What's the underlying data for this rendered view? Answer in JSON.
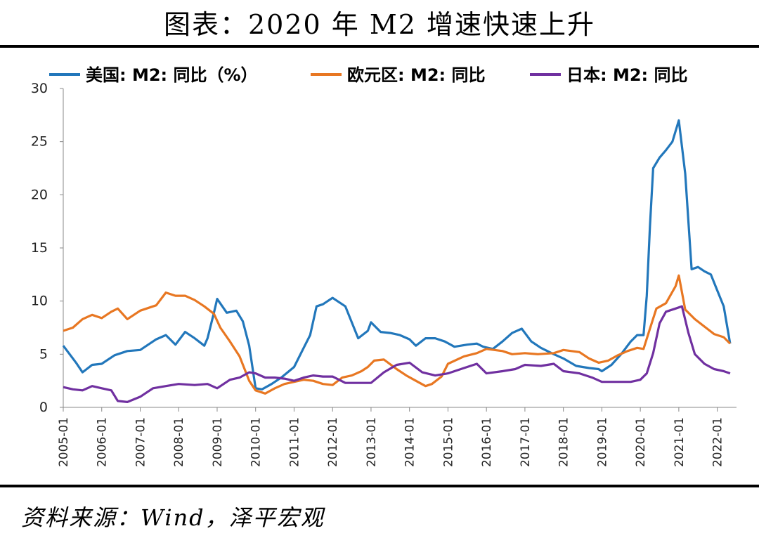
{
  "title": "图表：2020 年 M2 增速快速上升",
  "source": "资料来源：Wind，泽平宏观",
  "colors": {
    "us": "#2277BB",
    "euro": "#E87722",
    "japan": "#7030A0"
  },
  "chart_data": {
    "type": "line",
    "ylim": [
      0,
      30
    ],
    "yticks": [
      0,
      5,
      10,
      15,
      20,
      25,
      30
    ],
    "xlim": [
      "2005-01",
      "2022-07"
    ],
    "xticks": [
      "2005-01",
      "2006-01",
      "2007-01",
      "2008-01",
      "2009-01",
      "2010-01",
      "2011-01",
      "2012-01",
      "2013-01",
      "2014-01",
      "2015-01",
      "2016-01",
      "2017-01",
      "2018-01",
      "2019-01",
      "2020-01",
      "2021-01",
      "2022-01"
    ],
    "legend_position": "top",
    "grid": false,
    "series": [
      {
        "name": "美国: M2: 同比（%）",
        "color": "#2277BB",
        "points": [
          [
            "2005-01",
            5.8
          ],
          [
            "2005-05",
            4.2
          ],
          [
            "2005-07",
            3.3
          ],
          [
            "2005-10",
            4.0
          ],
          [
            "2006-01",
            4.1
          ],
          [
            "2006-05",
            4.9
          ],
          [
            "2006-09",
            5.3
          ],
          [
            "2007-01",
            5.4
          ],
          [
            "2007-06",
            6.4
          ],
          [
            "2007-09",
            6.8
          ],
          [
            "2007-12",
            5.9
          ],
          [
            "2008-03",
            7.1
          ],
          [
            "2008-06",
            6.5
          ],
          [
            "2008-09",
            5.8
          ],
          [
            "2008-10",
            6.5
          ],
          [
            "2008-12",
            8.9
          ],
          [
            "2009-01",
            10.2
          ],
          [
            "2009-04",
            8.9
          ],
          [
            "2009-07",
            9.1
          ],
          [
            "2009-09",
            8.1
          ],
          [
            "2009-11",
            5.8
          ],
          [
            "2010-01",
            1.8
          ],
          [
            "2010-03",
            1.7
          ],
          [
            "2010-06",
            2.2
          ],
          [
            "2010-09",
            2.8
          ],
          [
            "2011-01",
            3.8
          ],
          [
            "2011-04",
            5.6
          ],
          [
            "2011-06",
            6.8
          ],
          [
            "2011-08",
            9.5
          ],
          [
            "2011-10",
            9.7
          ],
          [
            "2012-01",
            10.3
          ],
          [
            "2012-05",
            9.5
          ],
          [
            "2012-09",
            6.5
          ],
          [
            "2012-12",
            7.2
          ],
          [
            "2013-01",
            8.0
          ],
          [
            "2013-04",
            7.1
          ],
          [
            "2013-07",
            7.0
          ],
          [
            "2013-10",
            6.8
          ],
          [
            "2014-01",
            6.4
          ],
          [
            "2014-03",
            5.8
          ],
          [
            "2014-06",
            6.5
          ],
          [
            "2014-09",
            6.5
          ],
          [
            "2014-12",
            6.2
          ],
          [
            "2015-03",
            5.7
          ],
          [
            "2015-07",
            5.9
          ],
          [
            "2015-10",
            6.0
          ],
          [
            "2015-12",
            5.7
          ],
          [
            "2016-03",
            5.5
          ],
          [
            "2016-06",
            6.2
          ],
          [
            "2016-09",
            7.0
          ],
          [
            "2016-12",
            7.4
          ],
          [
            "2017-03",
            6.2
          ],
          [
            "2017-06",
            5.6
          ],
          [
            "2017-10",
            5.0
          ],
          [
            "2018-01",
            4.6
          ],
          [
            "2018-05",
            3.9
          ],
          [
            "2018-09",
            3.7
          ],
          [
            "2018-12",
            3.6
          ],
          [
            "2019-01",
            3.4
          ],
          [
            "2019-04",
            4.0
          ],
          [
            "2019-07",
            5.0
          ],
          [
            "2019-10",
            6.2
          ],
          [
            "2019-12",
            6.8
          ],
          [
            "2020-02",
            6.8
          ],
          [
            "2020-03",
            10.5
          ],
          [
            "2020-04",
            17.0
          ],
          [
            "2020-05",
            22.5
          ],
          [
            "2020-07",
            23.5
          ],
          [
            "2020-09",
            24.2
          ],
          [
            "2020-11",
            25.0
          ],
          [
            "2021-01",
            27.0
          ],
          [
            "2021-03",
            22.0
          ],
          [
            "2021-05",
            13.0
          ],
          [
            "2021-07",
            13.2
          ],
          [
            "2021-09",
            12.8
          ],
          [
            "2021-11",
            12.5
          ],
          [
            "2022-01",
            11.0
          ],
          [
            "2022-03",
            9.5
          ],
          [
            "2022-05",
            6.0
          ]
        ]
      },
      {
        "name": "欧元区: M2: 同比",
        "color": "#E87722",
        "points": [
          [
            "2005-01",
            7.2
          ],
          [
            "2005-04",
            7.5
          ],
          [
            "2005-07",
            8.3
          ],
          [
            "2005-10",
            8.7
          ],
          [
            "2006-01",
            8.4
          ],
          [
            "2006-04",
            9.0
          ],
          [
            "2006-06",
            9.3
          ],
          [
            "2006-09",
            8.3
          ],
          [
            "2007-01",
            9.1
          ],
          [
            "2007-06",
            9.6
          ],
          [
            "2007-09",
            10.8
          ],
          [
            "2007-12",
            10.5
          ],
          [
            "2008-03",
            10.5
          ],
          [
            "2008-06",
            10.1
          ],
          [
            "2008-09",
            9.5
          ],
          [
            "2008-12",
            8.8
          ],
          [
            "2009-02",
            7.5
          ],
          [
            "2009-05",
            6.2
          ],
          [
            "2009-08",
            4.8
          ],
          [
            "2009-11",
            2.5
          ],
          [
            "2010-01",
            1.6
          ],
          [
            "2010-04",
            1.3
          ],
          [
            "2010-07",
            1.8
          ],
          [
            "2010-10",
            2.2
          ],
          [
            "2011-01",
            2.4
          ],
          [
            "2011-04",
            2.6
          ],
          [
            "2011-07",
            2.5
          ],
          [
            "2011-10",
            2.2
          ],
          [
            "2012-01",
            2.1
          ],
          [
            "2012-04",
            2.8
          ],
          [
            "2012-07",
            3.0
          ],
          [
            "2012-10",
            3.4
          ],
          [
            "2012-12",
            3.8
          ],
          [
            "2013-02",
            4.4
          ],
          [
            "2013-05",
            4.5
          ],
          [
            "2013-09",
            3.6
          ],
          [
            "2013-12",
            3.0
          ],
          [
            "2014-03",
            2.5
          ],
          [
            "2014-06",
            2.0
          ],
          [
            "2014-08",
            2.2
          ],
          [
            "2014-11",
            2.9
          ],
          [
            "2015-01",
            4.1
          ],
          [
            "2015-06",
            4.8
          ],
          [
            "2015-10",
            5.1
          ],
          [
            "2016-01",
            5.5
          ],
          [
            "2016-06",
            5.3
          ],
          [
            "2016-09",
            5.0
          ],
          [
            "2017-01",
            5.1
          ],
          [
            "2017-05",
            5.0
          ],
          [
            "2017-10",
            5.1
          ],
          [
            "2018-01",
            5.4
          ],
          [
            "2018-06",
            5.2
          ],
          [
            "2018-09",
            4.6
          ],
          [
            "2018-12",
            4.2
          ],
          [
            "2019-03",
            4.4
          ],
          [
            "2019-06",
            4.9
          ],
          [
            "2019-09",
            5.3
          ],
          [
            "2019-12",
            5.6
          ],
          [
            "2020-02",
            5.5
          ],
          [
            "2020-04",
            7.4
          ],
          [
            "2020-06",
            9.3
          ],
          [
            "2020-09",
            9.8
          ],
          [
            "2020-12",
            11.4
          ],
          [
            "2021-01",
            12.4
          ],
          [
            "2021-03",
            9.2
          ],
          [
            "2021-06",
            8.3
          ],
          [
            "2021-09",
            7.6
          ],
          [
            "2021-12",
            6.9
          ],
          [
            "2022-03",
            6.6
          ],
          [
            "2022-05",
            6.0
          ]
        ]
      },
      {
        "name": "日本: M2: 同比",
        "color": "#7030A0",
        "points": [
          [
            "2005-01",
            1.9
          ],
          [
            "2005-04",
            1.7
          ],
          [
            "2005-07",
            1.6
          ],
          [
            "2005-10",
            2.0
          ],
          [
            "2006-01",
            1.8
          ],
          [
            "2006-04",
            1.6
          ],
          [
            "2006-06",
            0.6
          ],
          [
            "2006-09",
            0.5
          ],
          [
            "2007-01",
            1.0
          ],
          [
            "2007-05",
            1.8
          ],
          [
            "2007-09",
            2.0
          ],
          [
            "2008-01",
            2.2
          ],
          [
            "2008-06",
            2.1
          ],
          [
            "2008-10",
            2.2
          ],
          [
            "2009-01",
            1.8
          ],
          [
            "2009-05",
            2.6
          ],
          [
            "2009-08",
            2.8
          ],
          [
            "2009-11",
            3.3
          ],
          [
            "2010-01",
            3.2
          ],
          [
            "2010-04",
            2.8
          ],
          [
            "2010-07",
            2.8
          ],
          [
            "2010-10",
            2.7
          ],
          [
            "2011-01",
            2.5
          ],
          [
            "2011-04",
            2.8
          ],
          [
            "2011-07",
            3.0
          ],
          [
            "2011-10",
            2.9
          ],
          [
            "2012-01",
            2.9
          ],
          [
            "2012-05",
            2.3
          ],
          [
            "2012-09",
            2.3
          ],
          [
            "2013-01",
            2.3
          ],
          [
            "2013-05",
            3.3
          ],
          [
            "2013-09",
            4.0
          ],
          [
            "2014-01",
            4.2
          ],
          [
            "2014-05",
            3.3
          ],
          [
            "2014-09",
            3.0
          ],
          [
            "2015-01",
            3.2
          ],
          [
            "2015-06",
            3.7
          ],
          [
            "2015-10",
            4.1
          ],
          [
            "2016-01",
            3.2
          ],
          [
            "2016-06",
            3.4
          ],
          [
            "2016-10",
            3.6
          ],
          [
            "2017-01",
            4.0
          ],
          [
            "2017-06",
            3.9
          ],
          [
            "2017-10",
            4.1
          ],
          [
            "2018-01",
            3.4
          ],
          [
            "2018-06",
            3.2
          ],
          [
            "2018-10",
            2.8
          ],
          [
            "2019-01",
            2.4
          ],
          [
            "2019-06",
            2.4
          ],
          [
            "2019-10",
            2.4
          ],
          [
            "2020-01",
            2.6
          ],
          [
            "2020-03",
            3.2
          ],
          [
            "2020-05",
            5.1
          ],
          [
            "2020-07",
            7.9
          ],
          [
            "2020-09",
            9.0
          ],
          [
            "2020-12",
            9.3
          ],
          [
            "2021-02",
            9.5
          ],
          [
            "2021-04",
            7.0
          ],
          [
            "2021-06",
            5.0
          ],
          [
            "2021-09",
            4.1
          ],
          [
            "2021-12",
            3.6
          ],
          [
            "2022-03",
            3.4
          ],
          [
            "2022-05",
            3.2
          ]
        ]
      }
    ]
  }
}
